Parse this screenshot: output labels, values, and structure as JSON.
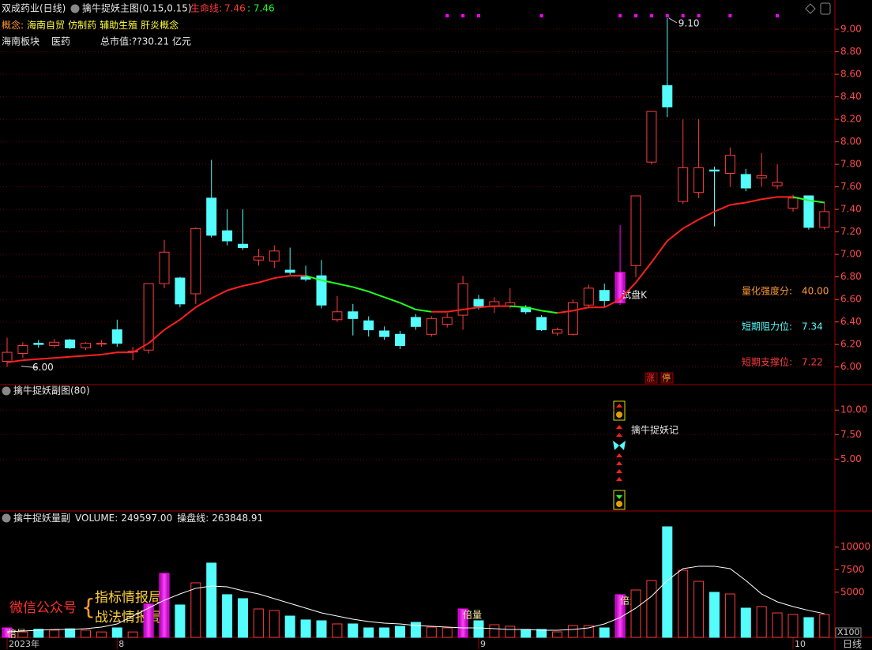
{
  "header": {
    "stock": "双成药业(日线)",
    "concept_label": "概念:",
    "concepts": [
      "海南自贸",
      "仿制药",
      "辅助生殖",
      "肝炎概念"
    ],
    "sector": "海南板块",
    "industry": "医药",
    "market_cap": "总市值:??30.21 亿元",
    "period": "日线",
    "watermark": [
      "微信公众号",
      "指标情报局",
      "战法情报局"
    ]
  },
  "chart_data": [
    {
      "type": "candlestick",
      "title": "擒牛捉妖主图(0.15,0.15)",
      "categories": [
        "2023年",
        null,
        null,
        null,
        null,
        null,
        null,
        "8",
        null,
        null,
        null,
        null,
        null,
        null,
        null,
        null,
        null,
        null,
        null,
        null,
        null,
        null,
        null,
        null,
        null,
        null,
        null,
        null,
        null,
        null,
        "9",
        null,
        null,
        null,
        null,
        null,
        null,
        null,
        null,
        null,
        null,
        null,
        null,
        null,
        null,
        null,
        null,
        null,
        null,
        null,
        "10",
        null,
        null
      ],
      "open": [
        6.05,
        6.12,
        6.21,
        6.19,
        6.24,
        6.17,
        6.21,
        6.33,
        6.14,
        6.15,
        6.74,
        6.79,
        6.65,
        7.5,
        7.21,
        7.09,
        6.95,
        6.94,
        6.86,
        6.8,
        6.81,
        6.42,
        6.49,
        6.41,
        6.32,
        6.29,
        6.44,
        6.29,
        6.38,
        6.46,
        6.6,
        6.54,
        6.54,
        6.53,
        6.44,
        6.3,
        6.29,
        6.55,
        6.68,
        6.57,
        6.9,
        7.82,
        8.5,
        7.47,
        7.55,
        7.75,
        7.72,
        7.71,
        7.68,
        7.61,
        7.41,
        7.52,
        7.24
      ],
      "high": [
        6.26,
        6.22,
        6.24,
        6.25,
        6.25,
        6.22,
        6.24,
        6.42,
        6.18,
        6.74,
        7.13,
        6.8,
        7.24,
        7.84,
        7.4,
        7.4,
        7.05,
        7.08,
        7.06,
        6.9,
        6.95,
        6.63,
        6.56,
        6.45,
        6.36,
        6.32,
        6.47,
        6.45,
        6.48,
        6.81,
        6.64,
        6.62,
        6.7,
        6.55,
        6.46,
        6.35,
        6.6,
        6.73,
        6.74,
        7.26,
        7.52,
        8.27,
        9.1,
        8.2,
        8.2,
        7.78,
        7.95,
        7.76,
        7.9,
        7.8,
        7.53,
        7.52,
        7.47
      ],
      "low": [
        6.0,
        6.08,
        6.17,
        6.17,
        6.16,
        6.15,
        6.18,
        6.18,
        6.06,
        6.12,
        6.7,
        6.53,
        6.56,
        7.15,
        7.08,
        7.04,
        6.9,
        6.88,
        6.82,
        6.76,
        6.52,
        6.4,
        6.28,
        6.27,
        6.24,
        6.16,
        6.33,
        6.27,
        6.35,
        6.33,
        6.51,
        6.48,
        6.52,
        6.47,
        6.32,
        6.28,
        6.28,
        6.52,
        6.53,
        6.55,
        6.8,
        7.8,
        8.22,
        7.45,
        7.5,
        7.25,
        7.6,
        7.56,
        7.6,
        7.58,
        7.38,
        7.22,
        7.22
      ],
      "close": [
        6.13,
        6.19,
        6.2,
        6.22,
        6.17,
        6.21,
        6.21,
        6.21,
        6.14,
        6.74,
        7.02,
        6.56,
        7.23,
        7.17,
        7.12,
        7.06,
        6.98,
        7.03,
        6.84,
        6.78,
        6.55,
        6.49,
        6.43,
        6.33,
        6.27,
        6.19,
        6.36,
        6.43,
        6.44,
        6.74,
        6.54,
        6.58,
        6.57,
        6.49,
        6.33,
        6.33,
        6.57,
        6.7,
        6.59,
        6.84,
        7.52,
        8.27,
        8.31,
        7.77,
        7.77,
        7.74,
        7.88,
        7.59,
        7.7,
        7.64,
        7.5,
        7.24,
        7.38
      ],
      "up_color": "#ff3c3c",
      "down_color": "#54fcfc",
      "special_color": "#ff00ff",
      "special_candles": [
        39
      ],
      "special_label": "试盘K",
      "ma": {
        "name": "生命线:",
        "values": [
          6.04,
          6.06,
          6.07,
          6.08,
          6.09,
          6.1,
          6.11,
          6.13,
          6.13,
          6.21,
          6.33,
          6.42,
          6.53,
          6.61,
          6.68,
          6.72,
          6.75,
          6.79,
          6.81,
          6.81,
          6.77,
          6.74,
          6.71,
          6.67,
          6.62,
          6.57,
          6.51,
          6.49,
          6.49,
          6.51,
          6.53,
          6.54,
          6.54,
          6.53,
          6.5,
          6.48,
          6.5,
          6.53,
          6.53,
          6.6,
          6.75,
          6.93,
          7.12,
          7.23,
          7.31,
          7.38,
          7.44,
          7.46,
          7.49,
          7.51,
          7.51,
          7.48,
          7.46
        ],
        "readout": ": 7.46",
        "up_color": "#ff2020",
        "down_color": "#20ff20"
      },
      "max_label": {
        "value": 9.1,
        "label": "9.10"
      },
      "min_label": {
        "value": 6,
        "label": "6.00"
      },
      "top_markers": [
        28,
        29,
        30,
        34,
        39,
        40,
        41,
        42,
        43,
        44,
        46,
        49
      ],
      "marker_color": "#ff00ff",
      "tags": [
        "涨",
        "停"
      ],
      "indicators": [
        {
          "name": "量化强度分:",
          "value": "40.00",
          "color": "#ff9a30"
        },
        {
          "name": "短期阻力位:",
          "value": "7.34",
          "color": "#54fcfc"
        },
        {
          "name": "短期支撑位:",
          "value": "7.22",
          "color": "#ff3c3c"
        }
      ],
      "ylim": [
        5.85,
        9.26
      ],
      "yticks": [
        {
          "value": 6,
          "label": "6.00"
        },
        {
          "value": 6.2,
          "label": "6.20"
        },
        {
          "value": 6.4,
          "label": "6.40"
        },
        {
          "value": 6.6,
          "label": "6.60"
        },
        {
          "value": 6.8,
          "label": "6.80"
        },
        {
          "value": 7,
          "label": "7.00"
        },
        {
          "value": 7.2,
          "label": "7.20"
        },
        {
          "value": 7.4,
          "label": "7.40"
        },
        {
          "value": 7.6,
          "label": "7.60"
        },
        {
          "value": 7.8,
          "label": "7.80"
        },
        {
          "value": 8,
          "label": "8.00"
        },
        {
          "value": 8.2,
          "label": "8.20"
        },
        {
          "value": 8.4,
          "label": "8.40"
        },
        {
          "value": 8.6,
          "label": "8.60"
        },
        {
          "value": 8.8,
          "label": "8.80"
        },
        {
          "value": 9,
          "label": "9.00"
        }
      ],
      "grid": true
    },
    {
      "type": "signal",
      "title": "擒牛捉妖副图(80)",
      "signal_label": "擒牛捉妖记",
      "ylim": [
        -0.3,
        12.6
      ],
      "yticks": [
        {
          "value": 5,
          "label": "5.00"
        },
        {
          "value": 7.5,
          "label": "7.50"
        },
        {
          "value": 10,
          "label": "10.00"
        }
      ],
      "grid": true
    },
    {
      "type": "volume",
      "title": "擒牛捉妖量副",
      "series": [
        {
          "name": "VOLUME:",
          "readout": "249597.00",
          "values": [
            1050,
            600,
            900,
            800,
            950,
            800,
            600,
            1050,
            600,
            3700,
            7090,
            3590,
            6040,
            8230,
            4730,
            4290,
            3150,
            2980,
            2360,
            1930,
            1840,
            1490,
            1490,
            1050,
            1050,
            1230,
            1660,
            1140,
            1050,
            3150,
            1840,
            1400,
            1230,
            880,
            880,
            610,
            1310,
            1310,
            1050,
            4730,
            5250,
            6300,
            12250,
            7440,
            6210,
            4990,
            4810,
            3240,
            3410,
            2710,
            2540,
            2190,
            2540
          ]
        },
        {
          "name": "操盘线:",
          "readout": "263848.91",
          "color": "#ffffff",
          "values": [
            610,
            700,
            790,
            880,
            880,
            960,
            1140,
            1490,
            2360,
            3240,
            4110,
            4810,
            5430,
            5690,
            5600,
            5160,
            4810,
            4290,
            3760,
            3240,
            2710,
            2360,
            2010,
            1750,
            1580,
            1490,
            1310,
            1230,
            1140,
            1050,
            1050,
            960,
            880,
            880,
            790,
            790,
            880,
            1050,
            1490,
            2190,
            3240,
            4550,
            6300,
            7610,
            7880,
            7880,
            7610,
            6300,
            4810,
            3940,
            3410,
            2980,
            2630
          ]
        }
      ],
      "special_bars": [
        0,
        9,
        10,
        29,
        39
      ],
      "label_bars": [
        0,
        29,
        39
      ],
      "special_label": "倍量",
      "unit_label": "X100",
      "ylim": [
        0,
        14000
      ],
      "yticks": [
        5000,
        7500,
        10000
      ],
      "grid": false
    }
  ]
}
